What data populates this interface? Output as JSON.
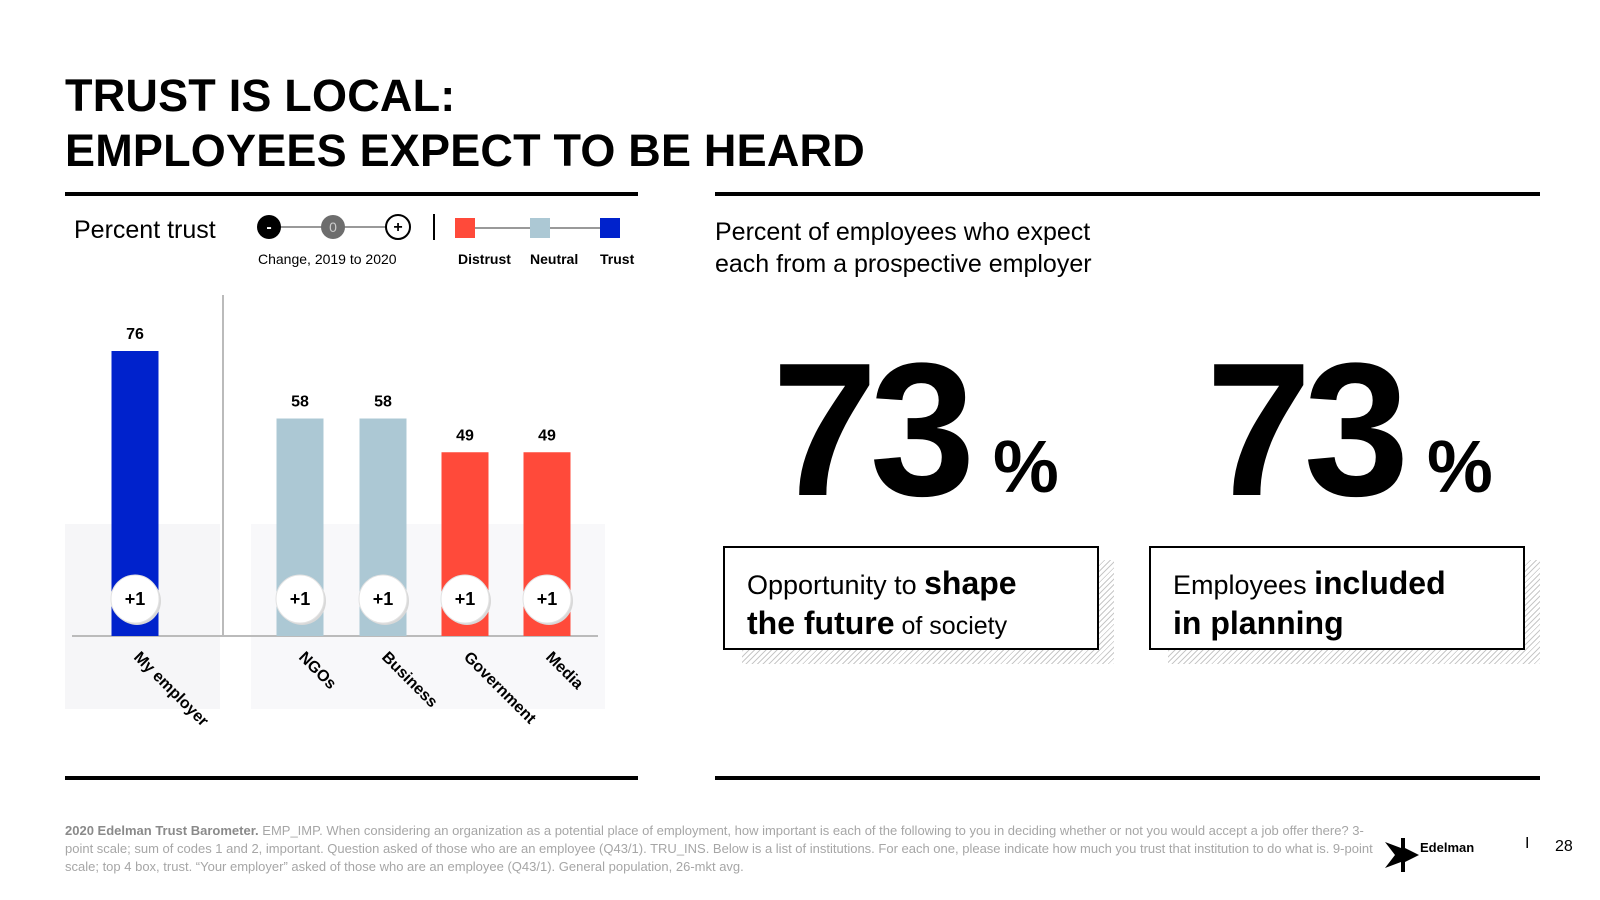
{
  "title": {
    "line1": "TRUST IS LOCAL:",
    "line2": "EMPLOYEES EXPECT TO BE HEARD"
  },
  "left_panel": {
    "subtitle": "Percent trust",
    "change_legend": {
      "minus": "-",
      "zero": "0",
      "plus": "+",
      "caption": "Change, 2019 to 2020"
    },
    "color_legend": [
      "Distrust",
      "Neutral",
      "Trust"
    ]
  },
  "colors": {
    "trust": "#0022cc",
    "neutral": "#acc8d4",
    "distrust": "#ff4a3a",
    "zero_dot": "#6d6d6d"
  },
  "chart_data": {
    "type": "bar",
    "title": "Percent trust",
    "categories": [
      "My employer",
      "NGOs",
      "Business",
      "Government",
      "Media"
    ],
    "values": [
      76,
      58,
      58,
      49,
      49
    ],
    "change": [
      "+1",
      "+1",
      "+1",
      "+1",
      "+1"
    ],
    "trust_level": [
      "Trust",
      "Neutral",
      "Neutral",
      "Distrust",
      "Distrust"
    ],
    "ylim": [
      0,
      100
    ],
    "grid": false
  },
  "right_panel": {
    "subtitle_line1": "Percent of employees who expect",
    "subtitle_line2": "each from a prospective employer",
    "stats": [
      {
        "value": "73",
        "unit": "%",
        "normal1": "Opportunity to ",
        "bold1": "shape",
        "bold2": "the future",
        "normal2": " of society"
      },
      {
        "value": "73",
        "unit": "%",
        "normal1": "Employees ",
        "bold1": "included",
        "bold2": "in planning",
        "normal2": ""
      }
    ]
  },
  "footer": {
    "source_bold": "2020 Edelman Trust Barometer.",
    "source_text": " EMP_IMP. When considering an organization as a potential place of employment, how important is each of the following to you in deciding whether or not you would accept a job offer there? 3-point scale; sum of codes 1 and 2, important. Question asked of those who are an employee (Q43/1). TRU_INS. Below is a list of institutions. For each one, please indicate how much you trust that institution to do what is. 9-point scale; top 4 box, trust. “Your employer” asked of those who are an employee (Q43/1). General population, 26-mkt avg.",
    "brand": "Edelman",
    "separator": "I",
    "page_number": "28"
  }
}
